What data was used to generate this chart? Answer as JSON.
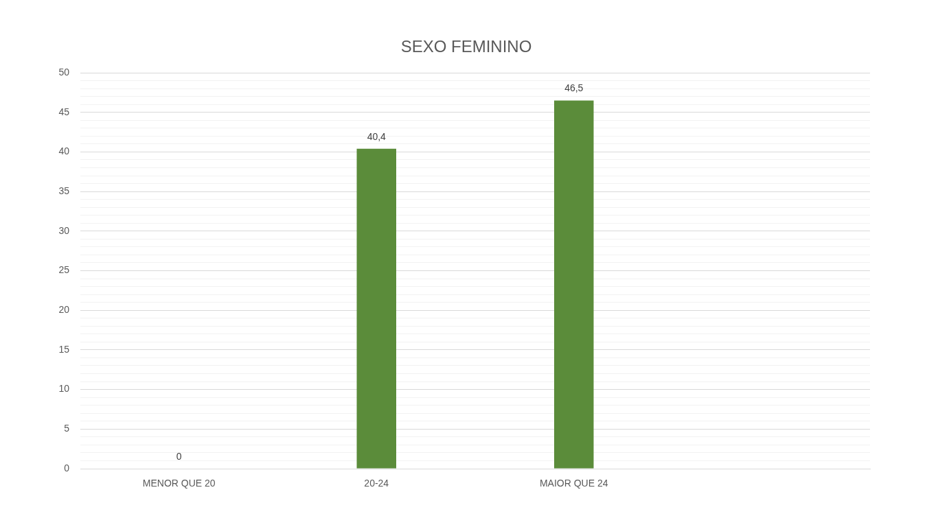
{
  "chart_data": {
    "type": "bar",
    "title": "SEXO FEMININO",
    "categories": [
      "MENOR QUE 20",
      "20-24",
      "MAIOR QUE 24",
      null
    ],
    "values": [
      0,
      40.4,
      46.5,
      null
    ],
    "color": "#5b8c3a",
    "value_labels": [
      "0",
      "40,4",
      "46,5",
      null
    ],
    "ylim": [
      0,
      50
    ],
    "yticks": [
      0,
      {
        "value": 1,
        "label": null
      },
      {
        "value": 2,
        "label": null
      },
      {
        "value": 3,
        "label": null
      },
      {
        "value": 4,
        "label": null
      },
      5,
      {
        "value": 6,
        "label": null
      },
      {
        "value": 7,
        "label": null
      },
      {
        "value": 8,
        "label": null
      },
      {
        "value": 9,
        "label": null
      },
      10,
      {
        "value": 11,
        "label": null
      },
      {
        "value": 12,
        "label": null
      },
      {
        "value": 13,
        "label": null
      },
      {
        "value": 14,
        "label": null
      },
      15,
      {
        "value": 16,
        "label": null
      },
      {
        "value": 17,
        "label": null
      },
      {
        "value": 18,
        "label": null
      },
      {
        "value": 19,
        "label": null
      },
      20,
      {
        "value": 21,
        "label": null
      },
      {
        "value": 22,
        "label": null
      },
      {
        "value": 23,
        "label": null
      },
      {
        "value": 24,
        "label": null
      },
      25,
      {
        "value": 26,
        "label": null
      },
      {
        "value": 27,
        "label": null
      },
      {
        "value": 28,
        "label": null
      },
      {
        "value": 29,
        "label": null
      },
      30,
      {
        "value": 31,
        "label": null
      },
      {
        "value": 32,
        "label": null
      },
      {
        "value": 33,
        "label": null
      },
      {
        "value": 34,
        "label": null
      },
      35,
      {
        "value": 36,
        "label": null
      },
      {
        "value": 37,
        "label": null
      },
      {
        "value": 38,
        "label": null
      },
      {
        "value": 39,
        "label": null
      },
      40,
      {
        "value": 41,
        "label": null
      },
      {
        "value": 42,
        "label": null
      },
      {
        "value": 43,
        "label": null
      },
      {
        "value": 44,
        "label": null
      },
      45,
      {
        "value": 46,
        "label": null
      },
      {
        "value": 47,
        "label": null
      },
      {
        "value": 48,
        "label": null
      },
      {
        "value": 49,
        "label": null
      },
      50
    ],
    "grid": "y"
  }
}
